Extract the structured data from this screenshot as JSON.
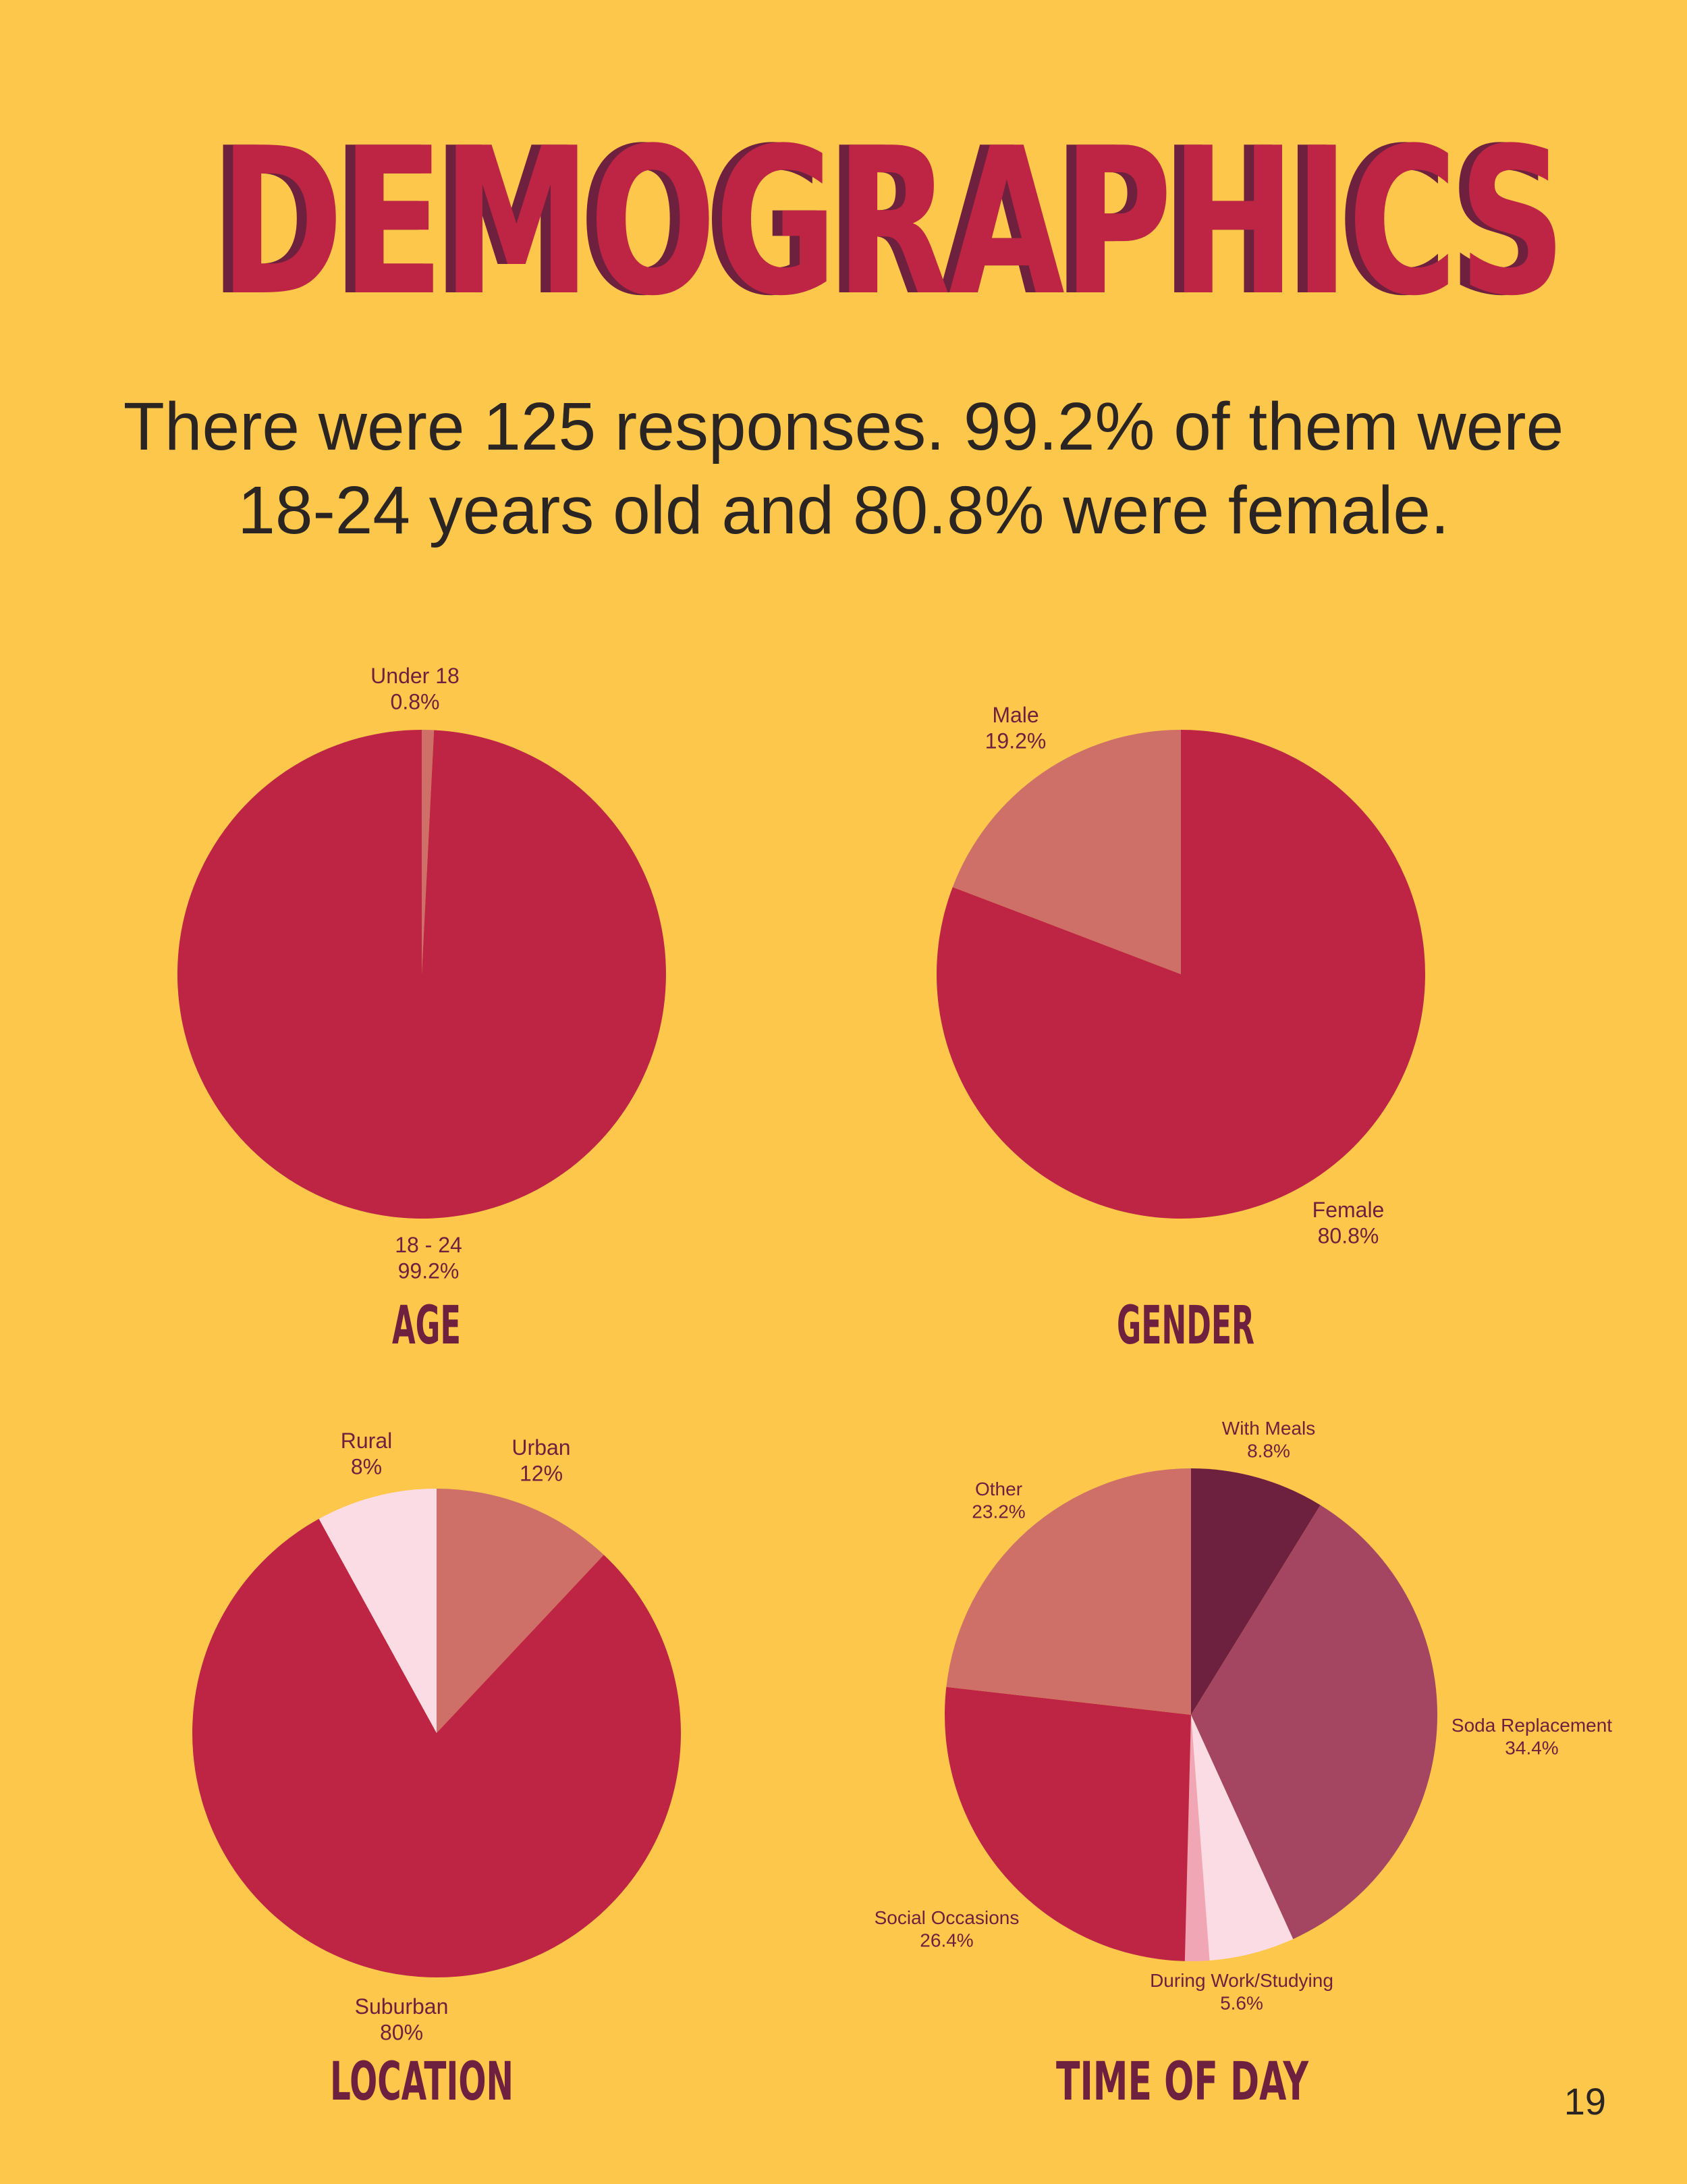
{
  "page": {
    "title": "DEMOGRAPHICS",
    "subtitle": "There were 125 responses. 99.2% of them were 18-24 years old and 80.8% were female.",
    "page_number": "19"
  },
  "colors": {
    "background": "#FCC74B",
    "crimson": "#BE2544",
    "coral": "#CE7067",
    "pale_pink": "#FCDCE4",
    "plum": "#A44562",
    "maroon": "#6E213E",
    "light_pink": "#F1A6B6",
    "text_dark": "#2A2523"
  },
  "chart_data": [
    {
      "type": "pie",
      "title": "AGE",
      "slices": [
        {
          "name": "Under 18",
          "label": "0.8%",
          "value": 0.8,
          "color": "#CE7067"
        },
        {
          "name": "18 - 24",
          "label": "99.2%",
          "value": 99.2,
          "color": "#BE2544"
        }
      ]
    },
    {
      "type": "pie",
      "title": "GENDER",
      "slices": [
        {
          "name": "Female",
          "label": "80.8%",
          "value": 80.8,
          "color": "#BE2544"
        },
        {
          "name": "Male",
          "label": "19.2%",
          "value": 19.2,
          "color": "#CE7067"
        }
      ]
    },
    {
      "type": "pie",
      "title": "LOCATION",
      "slices": [
        {
          "name": "Urban",
          "label": "12%",
          "value": 12,
          "color": "#CE7067"
        },
        {
          "name": "Suburban",
          "label": "80%",
          "value": 80,
          "color": "#BE2544"
        },
        {
          "name": "Rural",
          "label": "8%",
          "value": 8,
          "color": "#FCDCE4"
        }
      ]
    },
    {
      "type": "pie",
      "title": "TIME OF DAY",
      "slices": [
        {
          "name": "With Meals",
          "label": "8.8%",
          "value": 8.8,
          "color": "#6E213E"
        },
        {
          "name": "Soda Replacement",
          "label": "34.4%",
          "value": 34.4,
          "color": "#A44562"
        },
        {
          "name": "During Work/Studying",
          "label": "5.6%",
          "value": 5.6,
          "color": "#FCDCE4"
        },
        {
          "name": "",
          "label": "",
          "value": 1.6,
          "color": "#F1A6B6"
        },
        {
          "name": "Social Occasions",
          "label": "26.4%",
          "value": 26.4,
          "color": "#BE2544"
        },
        {
          "name": "Other",
          "label": "23.2%",
          "value": 23.2,
          "color": "#CE7067"
        }
      ]
    }
  ]
}
